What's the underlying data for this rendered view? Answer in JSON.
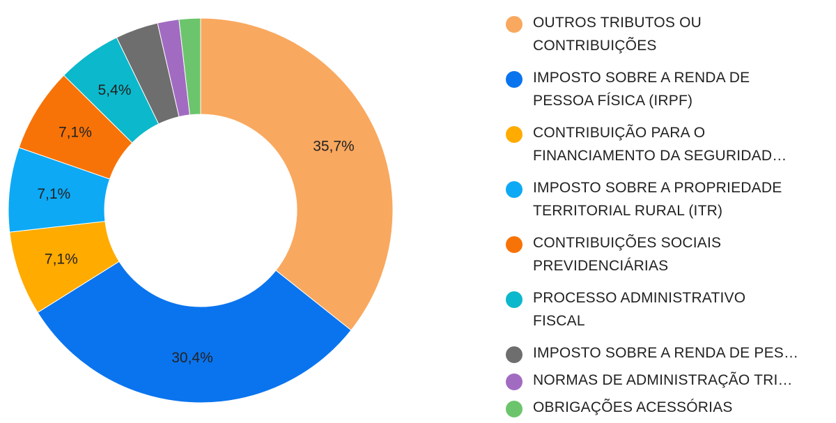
{
  "chart_data": {
    "type": "pie",
    "donut": true,
    "legend_position": "right",
    "slices": [
      {
        "name": "OUTROS TRIBUTOS OU CONTRIBUIÇÕES",
        "legend_lines": [
          "OUTROS TRIBUTOS OU",
          "CONTRIBUIÇÕES"
        ],
        "value": 35.7,
        "label": "35,7%",
        "color": "#F9A85F"
      },
      {
        "name": "IMPOSTO SOBRE A RENDA DE PESSOA FÍSICA (IRPF)",
        "legend_lines": [
          "IMPOSTO SOBRE A RENDA DE",
          "PESSOA FÍSICA (IRPF)"
        ],
        "value": 30.4,
        "label": "30,4%",
        "color": "#0A74EE"
      },
      {
        "name": "CONTRIBUIÇÃO PARA O FINANCIAMENTO DA SEGURIDAD...",
        "legend_lines": [
          "CONTRIBUIÇÃO PARA O",
          "FINANCIAMENTO DA SEGURIDAD…"
        ],
        "value": 7.1,
        "label": "7,1%",
        "color": "#FFAB00"
      },
      {
        "name": "IMPOSTO SOBRE A PROPRIEDADE TERRITORIAL RURAL (ITR)",
        "legend_lines": [
          "IMPOSTO SOBRE A PROPRIEDADE",
          "TERRITORIAL RURAL (ITR)"
        ],
        "value": 7.1,
        "label": "7,1%",
        "color": "#0DA9F5"
      },
      {
        "name": "CONTRIBUIÇÕES SOCIAIS PREVIDENCIÁRIAS",
        "legend_lines": [
          "CONTRIBUIÇÕES SOCIAIS",
          "PREVIDENCIÁRIAS"
        ],
        "value": 7.1,
        "label": "7,1%",
        "color": "#F87307"
      },
      {
        "name": "PROCESSO ADMINISTRATIVO FISCAL",
        "legend_lines": [
          "PROCESSO ADMINISTRATIVO",
          "FISCAL"
        ],
        "value": 5.4,
        "label": "5,4%",
        "color": "#0CB8CB"
      },
      {
        "name": "IMPOSTO SOBRE A RENDA DE PES...",
        "legend_lines": [
          "IMPOSTO SOBRE A RENDA DE PES…"
        ],
        "value": 3.6,
        "label": "",
        "color": "#6E6E6E"
      },
      {
        "name": "NORMAS DE ADMINISTRAÇÃO TRI...",
        "legend_lines": [
          "NORMAS DE ADMINISTRAÇÃO TRI…"
        ],
        "value": 1.8,
        "label": "",
        "color": "#A26BC2"
      },
      {
        "name": "OBRIGAÇÕES ACESSÓRIAS",
        "legend_lines": [
          "OBRIGAÇÕES ACESSÓRIAS"
        ],
        "value": 1.8,
        "label": "",
        "color": "#6CC56C"
      }
    ]
  }
}
